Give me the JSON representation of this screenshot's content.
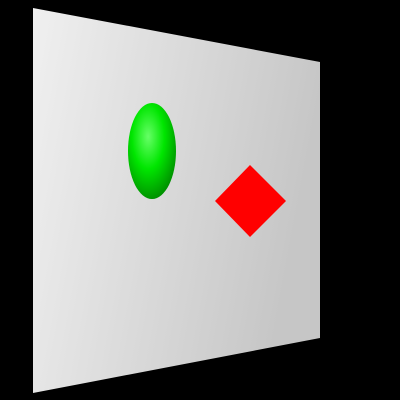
{
  "scene": {
    "background_color": "#000000",
    "panel": {
      "shape": "quadrilateral",
      "color_light": "#f0f0f0",
      "color_dark": "#c6c6c6"
    },
    "objects": [
      {
        "name": "ellipse",
        "shape": "ellipse",
        "color": "#00e600",
        "shade_color": "#007a00",
        "highlight_color": "#66ff66"
      },
      {
        "name": "diamond",
        "shape": "diamond",
        "color": "#ff0000"
      }
    ]
  }
}
